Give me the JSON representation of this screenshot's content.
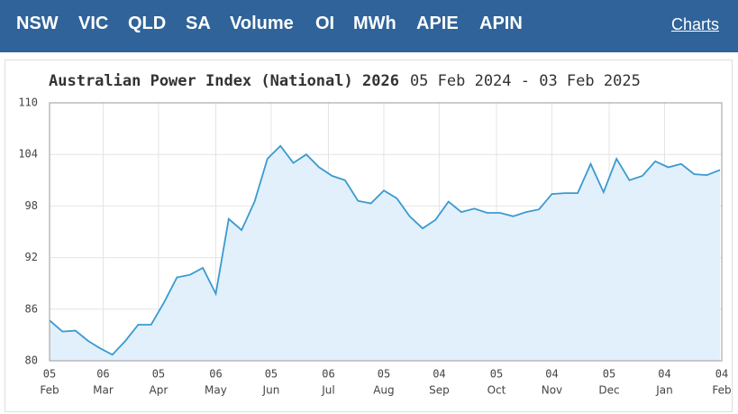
{
  "nav": {
    "items": [
      "NSW",
      "VIC",
      "QLD",
      "SA",
      "Volume",
      "OI",
      "MWh",
      "APIE",
      "APIN"
    ],
    "charts_link": "Charts"
  },
  "chart_data": {
    "type": "line",
    "title": "Australian Power Index (National) 2026",
    "subtitle": "05 Feb 2024 - 03 Feb 2025",
    "x": [
      "05 Feb",
      "12 Feb",
      "19 Feb",
      "26 Feb",
      "04 Mar",
      "11 Mar",
      "18 Mar",
      "25 Mar",
      "01 Apr",
      "08 Apr",
      "15 Apr",
      "22 Apr",
      "29 Apr",
      "06 May",
      "13 May",
      "20 May",
      "27 May",
      "03 Jun",
      "10 Jun",
      "17 Jun",
      "24 Jun",
      "01 Jul",
      "08 Jul",
      "15 Jul",
      "22 Jul",
      "29 Jul",
      "05 Aug",
      "12 Aug",
      "19 Aug",
      "26 Aug",
      "02 Sep",
      "09 Sep",
      "16 Sep",
      "23 Sep",
      "30 Sep",
      "07 Oct",
      "14 Oct",
      "21 Oct",
      "28 Oct",
      "04 Nov",
      "11 Nov",
      "18 Nov",
      "25 Nov",
      "02 Dec",
      "09 Dec",
      "16 Dec",
      "23 Dec",
      "30 Dec",
      "06 Jan",
      "13 Jan",
      "20 Jan",
      "27 Jan",
      "03 Feb"
    ],
    "values": [
      84.7,
      83.4,
      83.5,
      82.3,
      81.5,
      80.7,
      82.3,
      84.2,
      84.2,
      86.8,
      89.7,
      90.0,
      90.8,
      87.8,
      96.5,
      95.2,
      98.5,
      103.5,
      105.0,
      103.0,
      104.0,
      102.5,
      101.5,
      101.0,
      98.6,
      98.3,
      99.8,
      98.9,
      96.8,
      95.4,
      96.4,
      98.5,
      97.3,
      97.7,
      97.2,
      97.2,
      96.8,
      97.3,
      97.6,
      99.4,
      99.5,
      99.5,
      102.9,
      99.6,
      103.5,
      101.0,
      101.5,
      103.2,
      102.5,
      102.9,
      101.7,
      101.6,
      102.2
    ],
    "color": "#3a9ad0",
    "fill_color": "#e2f0fc",
    "xlim": [
      "05 Feb",
      "04 Feb"
    ],
    "xticks": [
      {
        "day": "05",
        "month": "Feb"
      },
      {
        "day": "06",
        "month": "Mar"
      },
      {
        "day": "05",
        "month": "Apr"
      },
      {
        "day": "06",
        "month": "May"
      },
      {
        "day": "05",
        "month": "Jun"
      },
      {
        "day": "06",
        "month": "Jul"
      },
      {
        "day": "05",
        "month": "Aug"
      },
      {
        "day": "04",
        "month": "Sep"
      },
      {
        "day": "05",
        "month": "Oct"
      },
      {
        "day": "04",
        "month": "Nov"
      },
      {
        "day": "05",
        "month": "Dec"
      },
      {
        "day": "04",
        "month": "Jan"
      },
      {
        "day": "04",
        "month": "Feb"
      }
    ],
    "ylim": [
      80,
      110
    ],
    "yticks": [
      80,
      86,
      92,
      98,
      104,
      110
    ],
    "grid": true
  }
}
